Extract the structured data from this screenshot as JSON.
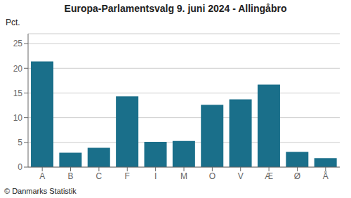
{
  "chart_data": {
    "type": "bar",
    "title": "Europa-Parlamentsvalg 9. juni 2024 - Allingåbro",
    "ylabel": "Pct.",
    "footer": "© Danmarks Statistik",
    "categories": [
      "A",
      "B",
      "C",
      "F",
      "I",
      "M",
      "O",
      "V",
      "Æ",
      "Ø",
      "Å"
    ],
    "values": [
      21.4,
      2.9,
      3.9,
      14.3,
      5.1,
      5.3,
      12.6,
      13.7,
      16.7,
      3.1,
      1.8
    ],
    "color": "#1a6f8a",
    "ylim": [
      0,
      27
    ],
    "yticks": [
      0,
      5,
      10,
      15,
      20,
      25
    ],
    "grid": true
  }
}
